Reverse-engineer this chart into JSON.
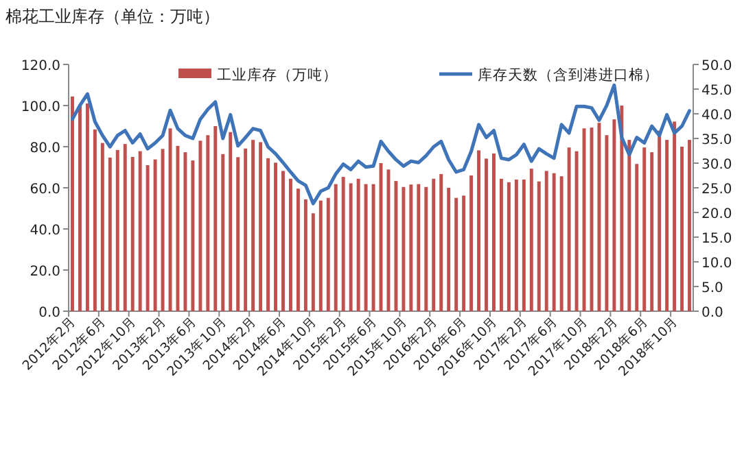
{
  "chart_data": {
    "type": "bar",
    "title": "棉花工业库存（单位：万吨）",
    "categories": [
      "2012年2月",
      null,
      null,
      null,
      "2012年6月",
      null,
      null,
      null,
      "2012年10月",
      null,
      null,
      null,
      "2013年2月",
      null,
      null,
      null,
      "2013年6月",
      null,
      null,
      null,
      "2013年10月",
      null,
      null,
      null,
      "2014年2月",
      null,
      null,
      null,
      "2014年6月",
      null,
      null,
      null,
      "2014年10月",
      null,
      null,
      null,
      "2015年2月",
      null,
      null,
      null,
      "2015年6月",
      null,
      null,
      null,
      "2015年10月",
      null,
      null,
      null,
      "2016年2月",
      null,
      null,
      null,
      "2016年6月",
      null,
      null,
      null,
      "2016年10月",
      null,
      null,
      null,
      "2017年2月",
      null,
      null,
      null,
      "2017年6月",
      null,
      null,
      null,
      "2017年10月",
      null,
      null,
      null,
      "2018年2月",
      null,
      null,
      null,
      "2018年6月",
      null,
      null,
      null,
      "2018年10月",
      null,
      null
    ],
    "series": [
      {
        "name": "工业库存（万吨）",
        "color": "#c0504d",
        "values": [
          104.4,
          100,
          101,
          88.4,
          81.8,
          74.7,
          78.4,
          81.3,
          75,
          77.8,
          71,
          73.8,
          78.9,
          88.9,
          80.4,
          77.3,
          73.3,
          82.9,
          85.6,
          90,
          76.4,
          87.1,
          74.9,
          79.1,
          83.3,
          82.2,
          74.4,
          72.2,
          68.2,
          64.4,
          59.6,
          54.4,
          47.6,
          53.8,
          55.1,
          61.8,
          65.3,
          62.2,
          64.4,
          61.8,
          61.8,
          72,
          68.9,
          63.3,
          60.4,
          61.6,
          61.8,
          60.4,
          64.4,
          66.7,
          60,
          55.1,
          56.2,
          66,
          78.2,
          74.2,
          76.7,
          64.4,
          62.7,
          64,
          64,
          69.3,
          63.1,
          68.2,
          67.1,
          65.6,
          79.6,
          77.8,
          88.9,
          89.3,
          91.6,
          85.6,
          93.3,
          100,
          83.3,
          71.6,
          79.6,
          77.3,
          87.8,
          83.3,
          92.2,
          80,
          83.3
        ]
      },
      {
        "name": "库存天数（含到港进口棉）",
        "type": "line",
        "axis": "y2",
        "color": "#3f74b8",
        "values": [
          38.9,
          41.7,
          44,
          38.4,
          35.6,
          33.3,
          35.6,
          36.6,
          34.1,
          35.9,
          32.9,
          34.1,
          35.6,
          40.7,
          37,
          35.6,
          35,
          38.9,
          40.9,
          42.4,
          35,
          39.8,
          33.5,
          35.2,
          37,
          36.6,
          33.3,
          31.9,
          30.1,
          28.2,
          26.4,
          25.5,
          21.8,
          24.3,
          25,
          27.8,
          29.8,
          28.7,
          30.4,
          29.2,
          29.4,
          34.4,
          32.4,
          30.7,
          29.4,
          30.4,
          30.1,
          31.5,
          33.3,
          34.4,
          30.7,
          28.2,
          28.7,
          32.4,
          37.8,
          35.2,
          36.6,
          31,
          30.7,
          31.7,
          33.8,
          30.4,
          32.9,
          31.9,
          31,
          37.8,
          36.1,
          41.5,
          41.5,
          41.2,
          38.7,
          41.7,
          45.8,
          35.2,
          31.7,
          35.2,
          34.1,
          37.5,
          35.6,
          39.8,
          36.1,
          37.5,
          40.6
        ]
      }
    ],
    "ylim": [
      0,
      120
    ],
    "yticks": [
      {
        "value": 0,
        "label": "0.0"
      },
      {
        "value": 20,
        "label": "20.0"
      },
      {
        "value": 40,
        "label": "40.0"
      },
      {
        "value": 60,
        "label": "60.0"
      },
      {
        "value": 80,
        "label": "80.0"
      },
      {
        "value": 100,
        "label": "100.0"
      },
      {
        "value": 120,
        "label": "120.0"
      }
    ],
    "y2lim": [
      0,
      50
    ],
    "y2ticks": [
      {
        "value": 0,
        "label": "0.0"
      },
      {
        "value": 5,
        "label": "5.0"
      },
      {
        "value": 10,
        "label": "10.0"
      },
      {
        "value": 15,
        "label": "15.0"
      },
      {
        "value": 20,
        "label": "20.0"
      },
      {
        "value": 25,
        "label": "25.0"
      },
      {
        "value": 30,
        "label": "30.0"
      },
      {
        "value": 35,
        "label": "35.0"
      },
      {
        "value": 40,
        "label": "40.0"
      },
      {
        "value": 45,
        "label": "45.0"
      },
      {
        "value": 50,
        "label": "50.0"
      }
    ],
    "legend": "top",
    "grid": false,
    "marker": "none",
    "line_style": "solid"
  }
}
